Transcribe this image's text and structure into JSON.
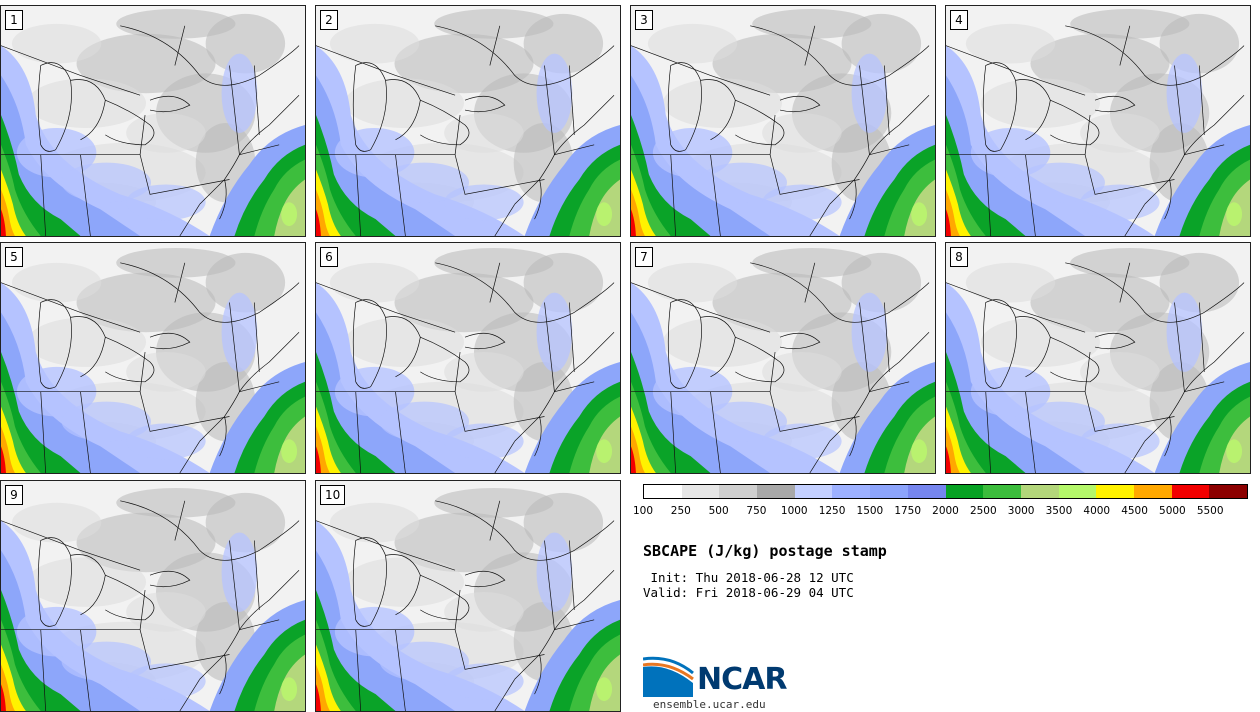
{
  "title": "SBCAPE (J/kg) postage stamp",
  "init": " Init: Thu 2018-06-28 12 UTC",
  "valid": "Valid: Fri 2018-06-29 04 UTC",
  "site": "ensemble.ucar.edu",
  "logo": {
    "text": "NCAR",
    "icon": "ncar-logo-icon"
  },
  "members": [
    "1",
    "2",
    "3",
    "4",
    "5",
    "6",
    "7",
    "8",
    "9",
    "10"
  ],
  "colorbar": {
    "ticks": [
      "100",
      "250",
      "500",
      "750",
      "1000",
      "1250",
      "1500",
      "1750",
      "2000",
      "2500",
      "3000",
      "3500",
      "4000",
      "4500",
      "5000",
      "5500"
    ],
    "colors": [
      "#ffffff",
      "#e6e6e6",
      "#cfcfcf",
      "#a8a8a8",
      "#c4d0ff",
      "#9db1ff",
      "#8ca4fb",
      "#7686ef",
      "#07a223",
      "#3cbd3c",
      "#b3d67a",
      "#b4f76a",
      "#fff200",
      "#ffa800",
      "#f20000",
      "#8c0000"
    ]
  },
  "colors": {
    "land_base": "#f2f2f2",
    "gray_light": "#dcdcdc",
    "gray": "#b8b8b8",
    "blue_light": "#b5c3ff",
    "blue": "#8da6fa",
    "blue_dark": "#7a8cf0",
    "green_dark": "#0aa328",
    "green": "#3dbe3d",
    "green_light": "#b4d77c",
    "yellow_green": "#b9f56e",
    "yellow": "#fff200",
    "orange": "#ffa800",
    "red": "#f20000",
    "dark_red": "#8c0000"
  }
}
